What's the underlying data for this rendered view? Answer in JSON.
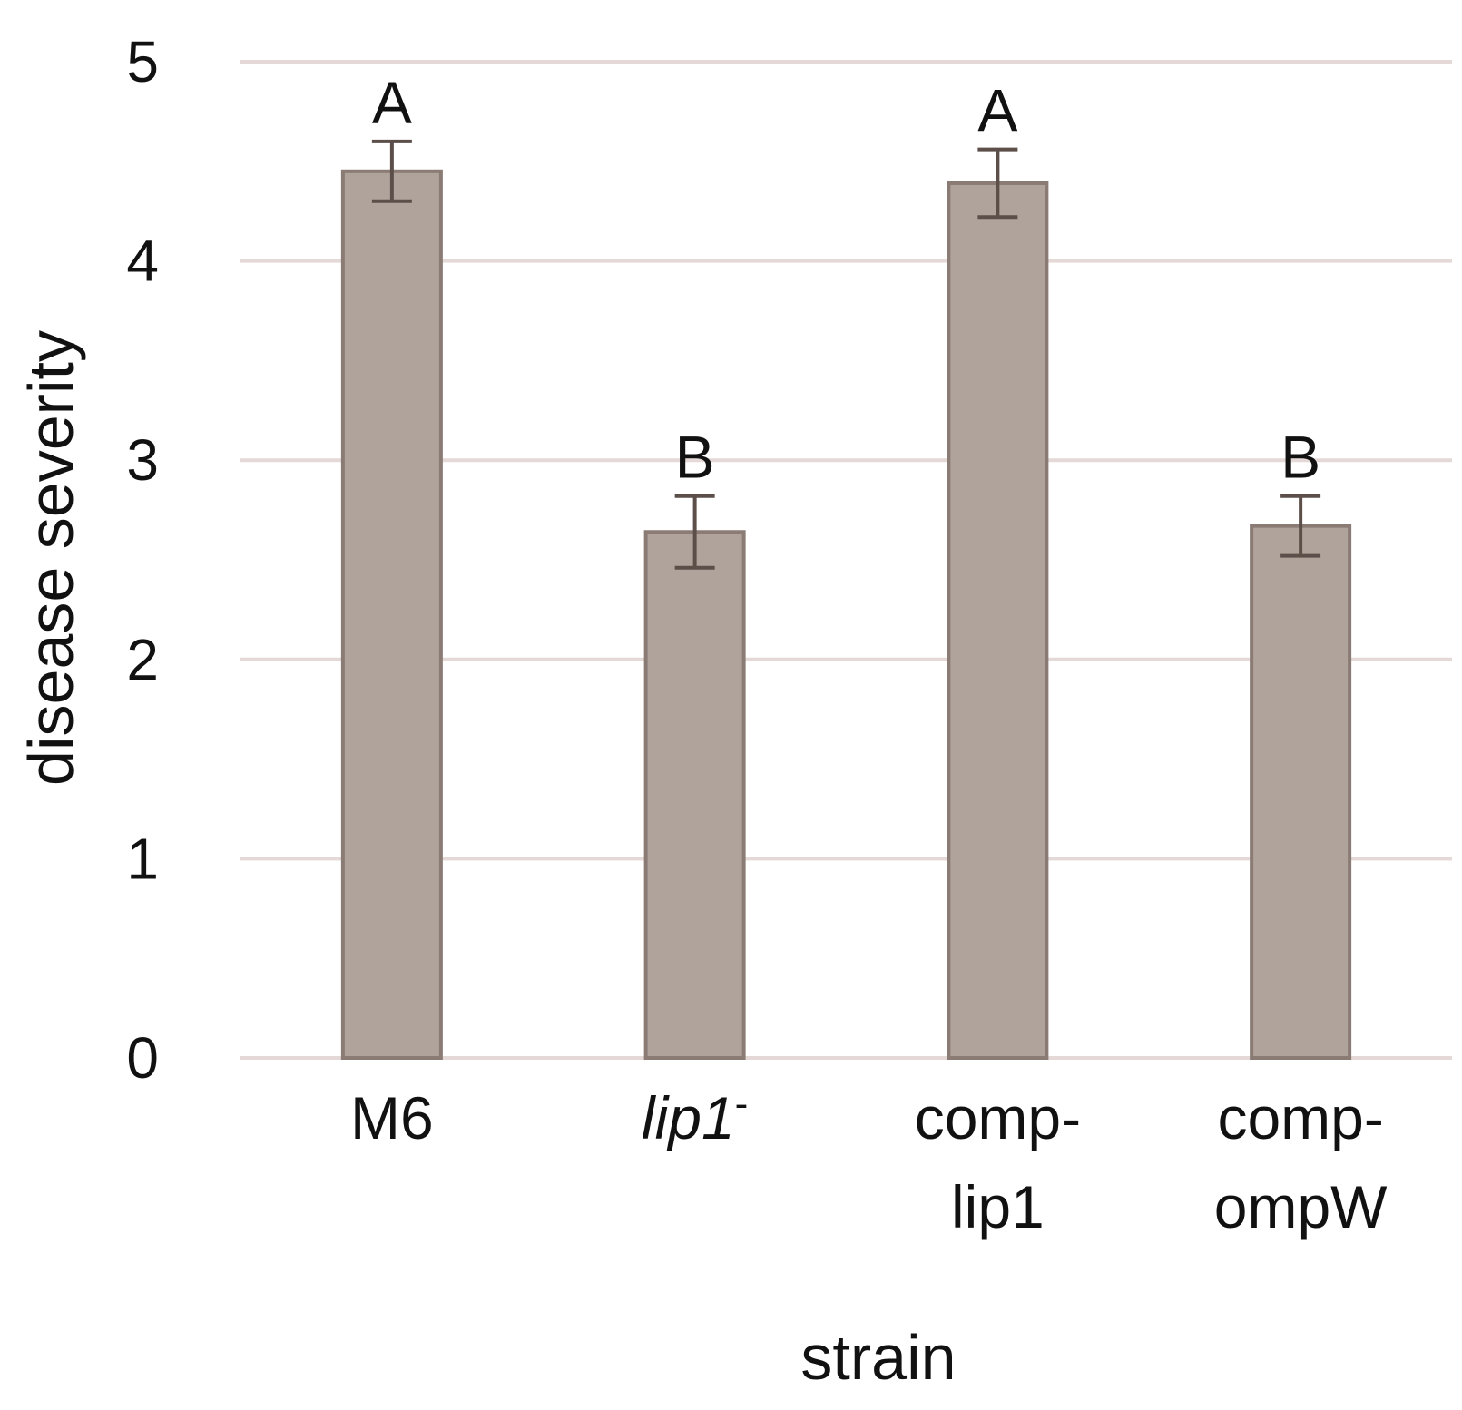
{
  "chart_data": {
    "type": "bar",
    "xlabel": "strain",
    "ylabel": "disease severity",
    "ylim": [
      0,
      5
    ],
    "yticks": [
      "0",
      "1",
      "2",
      "3",
      "4",
      "5"
    ],
    "grid": true,
    "bar_color": "#b0a39c",
    "categories": [
      {
        "lines": [
          "M6"
        ],
        "italic": false,
        "superscript": ""
      },
      {
        "lines": [
          "lip1"
        ],
        "italic": true,
        "superscript": "-"
      },
      {
        "lines": [
          "comp-",
          "lip1"
        ],
        "italic": false,
        "superscript": ""
      },
      {
        "lines": [
          "comp-",
          "ompW"
        ],
        "italic": false,
        "superscript": ""
      }
    ],
    "values": [
      4.45,
      2.64,
      4.39,
      2.67
    ],
    "error": [
      0.15,
      0.18,
      0.17,
      0.15
    ],
    "significance": [
      "A",
      "B",
      "A",
      "B"
    ]
  }
}
